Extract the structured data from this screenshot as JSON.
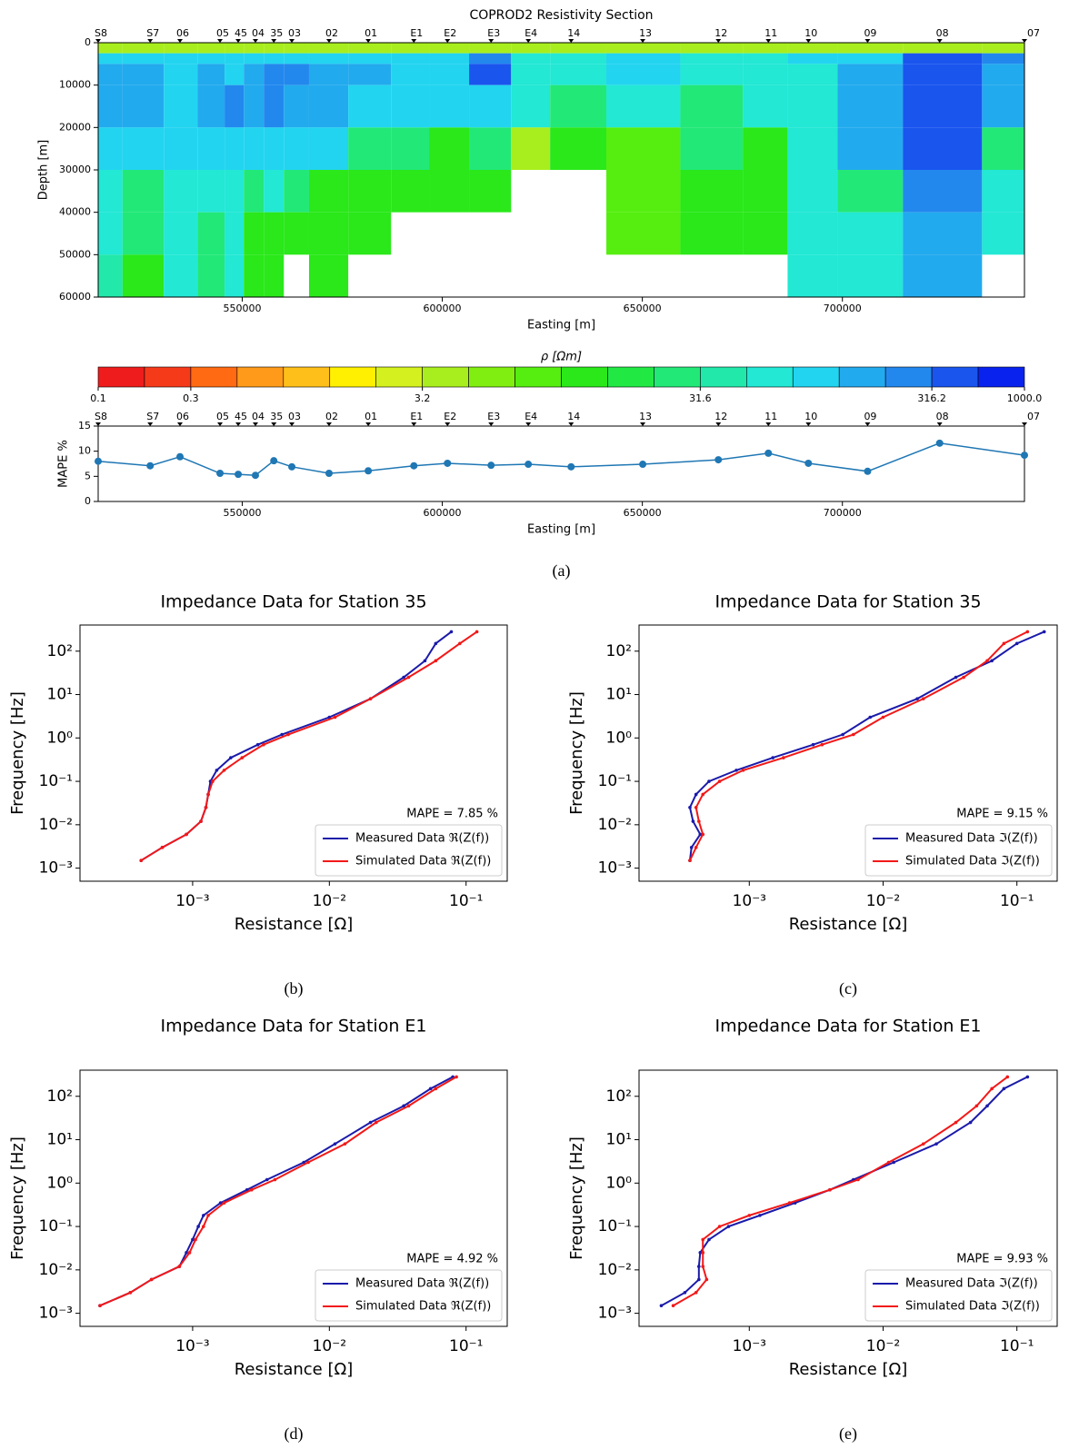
{
  "chart_data": [
    {
      "type": "heatmap",
      "title": "COPROD2 Resistivity Section",
      "xlabel": "Easting [m]",
      "ylabel": "Depth [m]",
      "xlim": [
        514000,
        745500
      ],
      "ylim": [
        0,
        60000
      ],
      "invert_y": true,
      "xticks": [
        550000,
        600000,
        650000,
        700000
      ],
      "yticks": [
        0,
        10000,
        20000,
        30000,
        40000,
        50000,
        60000
      ],
      "x_edges": [
        514000,
        520100,
        530400,
        538800,
        545600,
        550400,
        555400,
        560400,
        566700,
        576500,
        587200,
        596700,
        606700,
        617200,
        626950,
        641000,
        659500,
        675100,
        686300,
        698800,
        715100,
        734900,
        745500
      ],
      "depth_edges": [
        0,
        2500,
        5000,
        10000,
        20000,
        30000,
        40000,
        50000,
        60000
      ],
      "values": [
        [
          3.8,
          100,
          150,
          150,
          100,
          60,
          60,
          40
        ],
        [
          3.8,
          100,
          150,
          150,
          100,
          25,
          25,
          12
        ],
        [
          3.8,
          100,
          100,
          100,
          100,
          60,
          60,
          60
        ],
        [
          3.8,
          100,
          150,
          150,
          100,
          60,
          25,
          25
        ],
        [
          3.8,
          100,
          100,
          200,
          100,
          60,
          60,
          60
        ],
        [
          3.8,
          100,
          150,
          150,
          100,
          25,
          12,
          12
        ],
        [
          3.8,
          100,
          200,
          200,
          100,
          60,
          12,
          12
        ],
        [
          3.8,
          100,
          200,
          150,
          100,
          25,
          12,
          null
        ],
        [
          3.8,
          100,
          150,
          150,
          100,
          12,
          12,
          12
        ],
        [
          3.8,
          100,
          150,
          100,
          25,
          12,
          12,
          null
        ],
        [
          3.8,
          100,
          100,
          100,
          25,
          12,
          null,
          null
        ],
        [
          3.8,
          100,
          100,
          100,
          12,
          12,
          null,
          null
        ],
        [
          3.8,
          200,
          400,
          100,
          25,
          12,
          null,
          null
        ],
        [
          3.8,
          60,
          60,
          60,
          3.8,
          null,
          null,
          null
        ],
        [
          3.8,
          60,
          60,
          25,
          12,
          null,
          null,
          null
        ],
        [
          3.8,
          100,
          100,
          60,
          8,
          8,
          8,
          null
        ],
        [
          3.8,
          60,
          60,
          25,
          25,
          12,
          12,
          null
        ],
        [
          3.8,
          60,
          60,
          60,
          12,
          12,
          12,
          null
        ],
        [
          3.8,
          100,
          60,
          60,
          60,
          60,
          60,
          60
        ],
        [
          3.8,
          100,
          150,
          150,
          150,
          25,
          60,
          60
        ],
        [
          3.8,
          400,
          400,
          400,
          400,
          200,
          150,
          150
        ],
        [
          3.8,
          200,
          150,
          150,
          25,
          60,
          60,
          null
        ]
      ],
      "stations": {
        "names": [
          "S8",
          "S7",
          "06",
          "05",
          "45",
          "04",
          "35",
          "03",
          "02",
          "01",
          "E1",
          "E2",
          "E3",
          "E4",
          "14",
          "13",
          "12",
          "11",
          "10",
          "09",
          "08",
          "07"
        ],
        "x": [
          514000,
          527000,
          534450,
          544450,
          549000,
          553300,
          557900,
          562400,
          571700,
          581500,
          592900,
          601300,
          612200,
          621500,
          632200,
          650100,
          669000,
          681500,
          691500,
          706300,
          724300,
          745500
        ]
      }
    },
    {
      "type": "colorbar",
      "title": "ρ  [Ωm]",
      "bounds": [
        0.1,
        0.17,
        0.3,
        0.48,
        0.77,
        1.24,
        2.0,
        3.2,
        4.6,
        6.8,
        10,
        14.7,
        21.5,
        31.6,
        50,
        79,
        126,
        200,
        316.2,
        562,
        1000
      ],
      "colors": [
        "#ee1c1c",
        "#f53a1a",
        "#ff6a12",
        "#ff9a1a",
        "#ffbf1a",
        "#ffef00",
        "#d4f01e",
        "#a8ee1e",
        "#80ee10",
        "#55ee10",
        "#2ae81a",
        "#22e844",
        "#22e878",
        "#22e8aa",
        "#22e8d4",
        "#22d4f0",
        "#22aaee",
        "#2288ee",
        "#1a55ee",
        "#0a22ee"
      ],
      "ticks": [
        0.1,
        0.3,
        3.2,
        31.6,
        316.2,
        {
          "value": 1000,
          "label": "1000.0"
        }
      ]
    },
    {
      "type": "line",
      "xlabel": "Easting [m]",
      "ylabel": "MAPE %",
      "caption": "(a)",
      "color": "#1f77b4",
      "xlim": [
        514000,
        745500
      ],
      "ylim": [
        0,
        15
      ],
      "xticks": [
        550000,
        600000,
        650000,
        700000
      ],
      "yticks": [
        0,
        5,
        10,
        15
      ],
      "point_labels": [
        "S8",
        "S7",
        "06",
        "05",
        "45",
        "04",
        "35",
        "03",
        "02",
        "01",
        "E1",
        "E2",
        "E3",
        "E4",
        "14",
        "13",
        "12",
        "11",
        "10",
        "09",
        "08",
        "07"
      ],
      "x": [
        514000,
        527000,
        534450,
        544450,
        549000,
        553300,
        557900,
        562400,
        571700,
        581500,
        592900,
        601300,
        612200,
        621500,
        632200,
        650100,
        669000,
        681500,
        691500,
        706300,
        724300,
        745500
      ],
      "values": [
        8.0,
        7.1,
        8.9,
        5.6,
        5.4,
        5.2,
        8.1,
        6.9,
        5.6,
        6.1,
        7.1,
        7.6,
        7.2,
        7.4,
        6.9,
        7.4,
        8.3,
        9.6,
        7.6,
        6.0,
        11.6,
        9.2
      ]
    },
    {
      "type": "line",
      "title": "Impedance Data for Station 35",
      "xlabel": "Resistance [Ω]",
      "ylabel": "Frequency [Hz]",
      "caption": "(b)",
      "xscale": "log",
      "yscale": "log",
      "xlim": [
        0.00015,
        0.2
      ],
      "ylim": [
        0.0005,
        400
      ],
      "xticks": [
        {
          "value": 0.001,
          "label": "10⁻³"
        },
        {
          "value": 0.01,
          "label": "10⁻²"
        },
        {
          "value": 0.1,
          "label": "10⁻¹"
        }
      ],
      "yticks": [
        {
          "value": 0.001,
          "label": "10⁻³"
        },
        {
          "value": 0.01,
          "label": "10⁻²"
        },
        {
          "value": 0.1,
          "label": "10⁻¹"
        },
        {
          "value": 1,
          "label": "10⁰"
        },
        {
          "value": 10,
          "label": "10¹"
        },
        {
          "value": 100,
          "label": "10²"
        }
      ],
      "annotation": "MAPE = 7.85 %",
      "legend": "lower right",
      "series": [
        {
          "name": "Measured Data ℜ(Z(f))",
          "color": "#1a1aaa",
          "x": [
            0.00042,
            0.0006,
            0.0009,
            0.00115,
            0.00125,
            0.0013,
            0.00135,
            0.0015,
            0.0019,
            0.003,
            0.0045,
            0.01,
            0.02,
            0.035,
            0.05,
            0.06,
            0.078
          ],
          "values": [
            0.0015,
            0.003,
            0.006,
            0.012,
            0.025,
            0.05,
            0.1,
            0.18,
            0.35,
            0.7,
            1.2,
            3,
            8,
            25,
            60,
            150,
            280
          ]
        },
        {
          "name": "Simulated Data ℜ(Z(f))",
          "color": "#f21818",
          "x": [
            0.00042,
            0.0006,
            0.0009,
            0.00115,
            0.00125,
            0.0013,
            0.0014,
            0.0017,
            0.0023,
            0.0033,
            0.005,
            0.011,
            0.02,
            0.038,
            0.06,
            0.09,
            0.12
          ],
          "values": [
            0.0015,
            0.003,
            0.006,
            0.012,
            0.025,
            0.05,
            0.1,
            0.18,
            0.35,
            0.7,
            1.2,
            3,
            8,
            25,
            60,
            150,
            280
          ]
        }
      ]
    },
    {
      "type": "line",
      "title": "Impedance Data for Station 35",
      "xlabel": "Resistance [Ω]",
      "ylabel": "Frequency [Hz]",
      "caption": "(c)",
      "xscale": "log",
      "yscale": "log",
      "xlim": [
        0.00015,
        0.2
      ],
      "ylim": [
        0.0005,
        400
      ],
      "xticks": [
        {
          "value": 0.001,
          "label": "10⁻³"
        },
        {
          "value": 0.01,
          "label": "10⁻²"
        },
        {
          "value": 0.1,
          "label": "10⁻¹"
        }
      ],
      "yticks": [
        {
          "value": 0.001,
          "label": "10⁻³"
        },
        {
          "value": 0.01,
          "label": "10⁻²"
        },
        {
          "value": 0.1,
          "label": "10⁻¹"
        },
        {
          "value": 1,
          "label": "10⁰"
        },
        {
          "value": 10,
          "label": "10¹"
        },
        {
          "value": 100,
          "label": "10²"
        }
      ],
      "annotation": "MAPE = 9.15 %",
      "legend": "lower right",
      "series": [
        {
          "name": "Measured Data ℑ(Z(f))",
          "color": "#1a1aaa",
          "x": [
            0.00036,
            0.00037,
            0.00043,
            0.00038,
            0.00036,
            0.0004,
            0.0005,
            0.0008,
            0.0015,
            0.003,
            0.005,
            0.008,
            0.018,
            0.035,
            0.065,
            0.1,
            0.16
          ],
          "values": [
            0.0015,
            0.003,
            0.006,
            0.012,
            0.025,
            0.05,
            0.1,
            0.18,
            0.35,
            0.7,
            1.2,
            3,
            8,
            25,
            60,
            150,
            280
          ]
        },
        {
          "name": "Simulated Data ℑ(Z(f))",
          "color": "#f21818",
          "x": [
            0.00036,
            0.0004,
            0.00045,
            0.00042,
            0.0004,
            0.00045,
            0.0006,
            0.0009,
            0.0018,
            0.0035,
            0.006,
            0.01,
            0.02,
            0.04,
            0.06,
            0.08,
            0.12
          ],
          "values": [
            0.0015,
            0.003,
            0.006,
            0.012,
            0.025,
            0.05,
            0.1,
            0.18,
            0.35,
            0.7,
            1.2,
            3,
            8,
            25,
            60,
            150,
            280
          ]
        }
      ]
    },
    {
      "type": "line",
      "title": "Impedance Data for Station E1",
      "xlabel": "Resistance [Ω]",
      "ylabel": "Frequency [Hz]",
      "caption": "(d)",
      "xscale": "log",
      "yscale": "log",
      "xlim": [
        0.00015,
        0.2
      ],
      "ylim": [
        0.0005,
        400
      ],
      "xticks": [
        {
          "value": 0.001,
          "label": "10⁻³"
        },
        {
          "value": 0.01,
          "label": "10⁻²"
        },
        {
          "value": 0.1,
          "label": "10⁻¹"
        }
      ],
      "yticks": [
        {
          "value": 0.001,
          "label": "10⁻³"
        },
        {
          "value": 0.01,
          "label": "10⁻²"
        },
        {
          "value": 0.1,
          "label": "10⁻¹"
        },
        {
          "value": 1,
          "label": "10⁰"
        },
        {
          "value": 10,
          "label": "10¹"
        },
        {
          "value": 100,
          "label": "10²"
        }
      ],
      "annotation": "MAPE = 4.92 %",
      "legend": "lower right",
      "series": [
        {
          "name": "Measured Data ℜ(Z(f))",
          "color": "#1a1aaa",
          "x": [
            0.00021,
            0.00035,
            0.0005,
            0.0008,
            0.0009,
            0.001,
            0.0011,
            0.0012,
            0.0016,
            0.0025,
            0.0035,
            0.0065,
            0.011,
            0.02,
            0.035,
            0.055,
            0.08
          ],
          "values": [
            0.0015,
            0.003,
            0.006,
            0.012,
            0.025,
            0.05,
            0.1,
            0.18,
            0.35,
            0.7,
            1.2,
            3,
            8,
            25,
            60,
            150,
            280
          ]
        },
        {
          "name": "Simulated Data ℜ(Z(f))",
          "color": "#f21818",
          "x": [
            0.00021,
            0.00035,
            0.0005,
            0.0008,
            0.00095,
            0.00105,
            0.0012,
            0.0013,
            0.0017,
            0.0027,
            0.004,
            0.007,
            0.013,
            0.022,
            0.038,
            0.06,
            0.085
          ],
          "values": [
            0.0015,
            0.003,
            0.006,
            0.012,
            0.025,
            0.05,
            0.1,
            0.18,
            0.35,
            0.7,
            1.2,
            3,
            8,
            25,
            60,
            150,
            280
          ]
        }
      ]
    },
    {
      "type": "line",
      "title": "Impedance Data for Station E1",
      "xlabel": "Resistance [Ω]",
      "ylabel": "Frequency [Hz]",
      "caption": "(e)",
      "xscale": "log",
      "yscale": "log",
      "xlim": [
        0.00015,
        0.2
      ],
      "ylim": [
        0.0005,
        400
      ],
      "xticks": [
        {
          "value": 0.001,
          "label": "10⁻³"
        },
        {
          "value": 0.01,
          "label": "10⁻²"
        },
        {
          "value": 0.1,
          "label": "10⁻¹"
        }
      ],
      "yticks": [
        {
          "value": 0.001,
          "label": "10⁻³"
        },
        {
          "value": 0.01,
          "label": "10⁻²"
        },
        {
          "value": 0.1,
          "label": "10⁻¹"
        },
        {
          "value": 1,
          "label": "10⁰"
        },
        {
          "value": 10,
          "label": "10¹"
        },
        {
          "value": 100,
          "label": "10²"
        }
      ],
      "annotation": "MAPE = 9.93 %",
      "legend": "lower right",
      "series": [
        {
          "name": "Measured Data ℑ(Z(f))",
          "color": "#1a1aaa",
          "x": [
            0.00022,
            0.00033,
            0.00042,
            0.00042,
            0.00043,
            0.0005,
            0.0007,
            0.0012,
            0.0022,
            0.004,
            0.006,
            0.012,
            0.025,
            0.045,
            0.06,
            0.08,
            0.12
          ],
          "values": [
            0.0015,
            0.003,
            0.006,
            0.012,
            0.025,
            0.05,
            0.1,
            0.18,
            0.35,
            0.7,
            1.2,
            3,
            8,
            25,
            60,
            150,
            280
          ]
        },
        {
          "name": "Simulated Data ℑ(Z(f))",
          "color": "#f21818",
          "x": [
            0.00027,
            0.0004,
            0.00048,
            0.00045,
            0.00045,
            0.00045,
            0.0006,
            0.001,
            0.002,
            0.004,
            0.0065,
            0.011,
            0.02,
            0.035,
            0.05,
            0.065,
            0.085
          ],
          "values": [
            0.0015,
            0.003,
            0.006,
            0.012,
            0.025,
            0.05,
            0.1,
            0.18,
            0.35,
            0.7,
            1.2,
            3,
            8,
            25,
            60,
            150,
            280
          ]
        }
      ]
    }
  ]
}
